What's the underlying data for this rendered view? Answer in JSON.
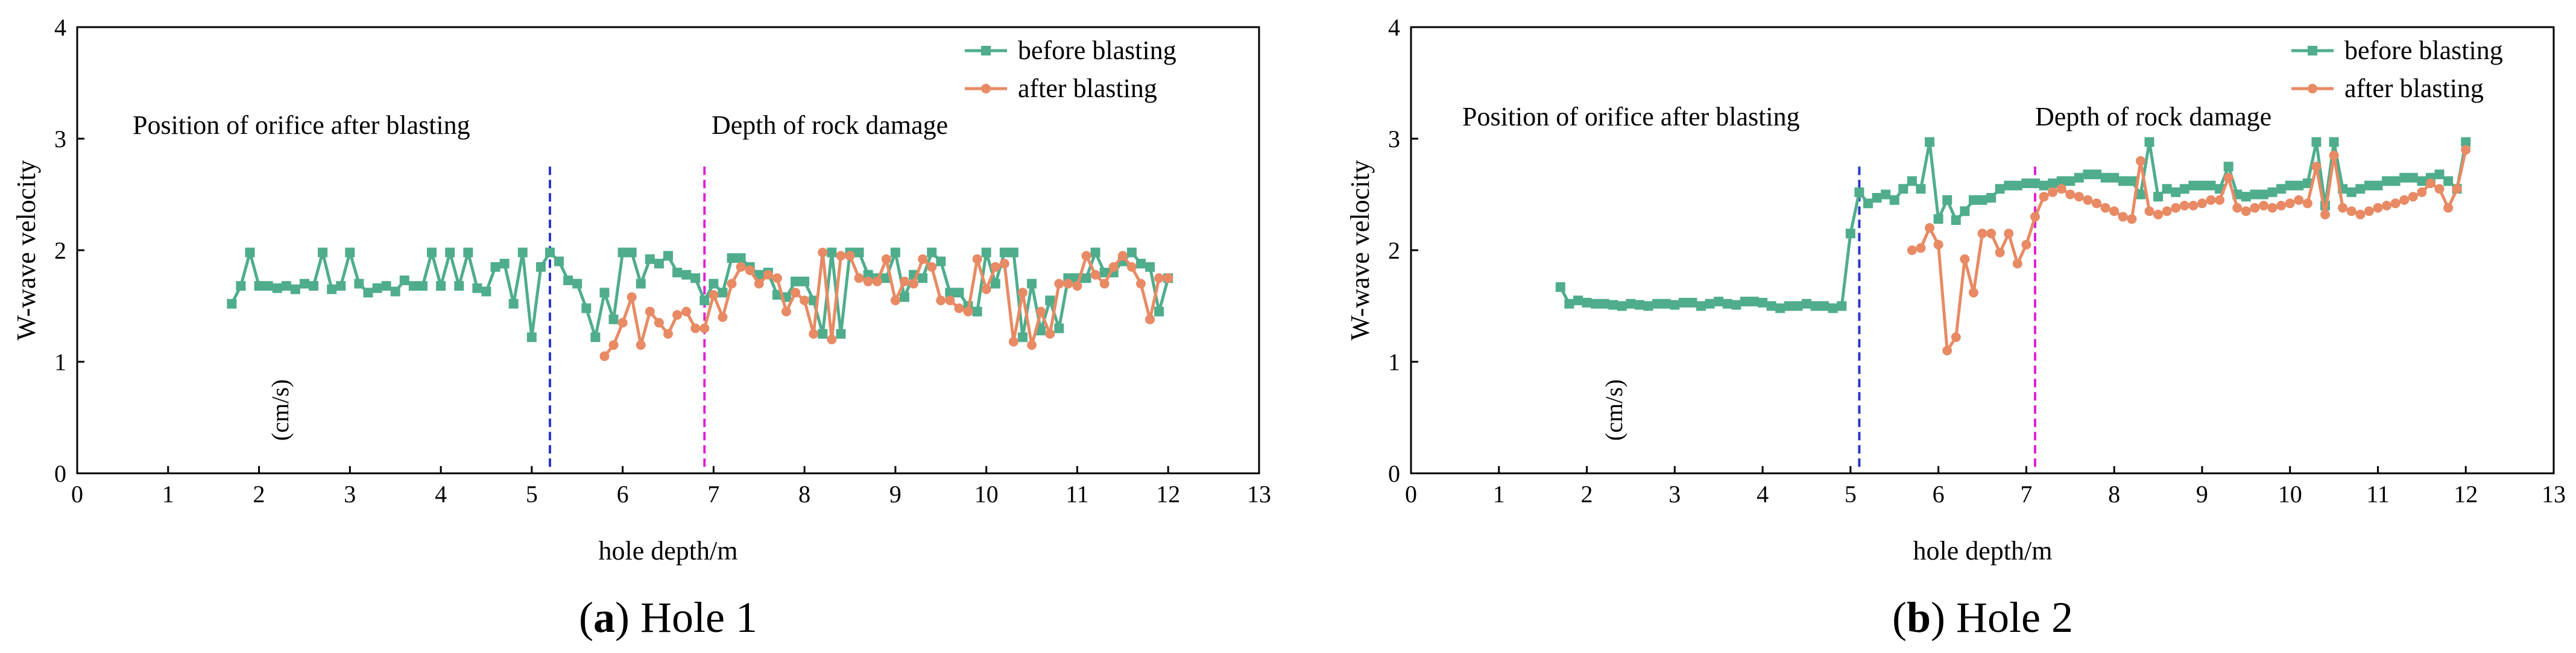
{
  "chart_data": [
    {
      "type": "line",
      "panel_letter": "a",
      "caption": "Hole 1",
      "xlabel": "hole depth/m",
      "ylabel": "W-wave velocity",
      "ylabel_unit": "(cm/s)",
      "xlim": [
        0,
        13
      ],
      "ylim": [
        0,
        4
      ],
      "xticks": [
        "0",
        "1",
        "2",
        "3",
        "4",
        "5",
        "6",
        "7",
        "8",
        "9",
        "10",
        "11",
        "12",
        "13"
      ],
      "yticks": [
        "0",
        "1",
        "2",
        "3",
        "4"
      ],
      "legend_position": "top-right",
      "annotations": [
        {
          "text": "Position of orifice after blasting",
          "x": 5.2,
          "color": "#2b36c9"
        },
        {
          "text": "Depth of rock damage",
          "x": 6.9,
          "color": "#e020d6"
        }
      ],
      "series": [
        {
          "name": "before blasting",
          "color": "#4fad8c",
          "marker": "square",
          "x": [
            1.7,
            1.8,
            1.9,
            2.0,
            2.1,
            2.2,
            2.3,
            2.4,
            2.5,
            2.6,
            2.7,
            2.8,
            2.9,
            3.0,
            3.1,
            3.2,
            3.3,
            3.4,
            3.5,
            3.6,
            3.7,
            3.8,
            3.9,
            4.0,
            4.1,
            4.2,
            4.3,
            4.4,
            4.5,
            4.6,
            4.7,
            4.8,
            4.9,
            5.0,
            5.1,
            5.2,
            5.3,
            5.4,
            5.5,
            5.6,
            5.7,
            5.8,
            5.9,
            6.0,
            6.1,
            6.2,
            6.3,
            6.4,
            6.5,
            6.6,
            6.7,
            6.8,
            6.9,
            7.0,
            7.1,
            7.2,
            7.3,
            7.4,
            7.5,
            7.6,
            7.7,
            7.8,
            7.9,
            8.0,
            8.1,
            8.2,
            8.3,
            8.4,
            8.5,
            8.6,
            8.7,
            8.8,
            8.9,
            9.0,
            9.1,
            9.2,
            9.3,
            9.4,
            9.5,
            9.6,
            9.7,
            9.8,
            9.9,
            10.0,
            10.1,
            10.2,
            10.3,
            10.4,
            10.5,
            10.6,
            10.7,
            10.8,
            10.9,
            11.0,
            11.1,
            11.2,
            11.3,
            11.4,
            11.5,
            11.6,
            11.7,
            11.8,
            11.9,
            12.0
          ],
          "y": [
            1.52,
            1.68,
            1.98,
            1.68,
            1.68,
            1.66,
            1.68,
            1.65,
            1.7,
            1.68,
            1.98,
            1.65,
            1.68,
            1.98,
            1.7,
            1.62,
            1.66,
            1.68,
            1.63,
            1.73,
            1.68,
            1.68,
            1.98,
            1.68,
            1.98,
            1.68,
            1.98,
            1.66,
            1.63,
            1.85,
            1.88,
            1.52,
            1.98,
            1.22,
            1.85,
            1.98,
            1.9,
            1.73,
            1.7,
            1.48,
            1.22,
            1.62,
            1.38,
            1.98,
            1.98,
            1.7,
            1.92,
            1.88,
            1.95,
            1.8,
            1.78,
            1.75,
            1.55,
            1.7,
            1.62,
            1.93,
            1.93,
            1.85,
            1.78,
            1.8,
            1.6,
            1.58,
            1.72,
            1.72,
            1.55,
            1.25,
            1.98,
            1.25,
            1.98,
            1.98,
            1.78,
            1.75,
            1.75,
            1.98,
            1.58,
            1.78,
            1.75,
            1.98,
            1.9,
            1.62,
            1.62,
            1.5,
            1.45,
            1.98,
            1.7,
            1.98,
            1.98,
            1.22,
            1.7,
            1.28,
            1.55,
            1.3,
            1.75,
            1.75,
            1.75,
            1.98,
            1.8,
            1.8,
            1.9,
            1.98,
            1.88,
            1.85,
            1.45,
            1.75
          ]
        },
        {
          "name": "after blasting",
          "color": "#e88a64",
          "marker": "circle",
          "x": [
            5.8,
            5.9,
            6.0,
            6.1,
            6.2,
            6.3,
            6.4,
            6.5,
            6.6,
            6.7,
            6.8,
            6.9,
            7.0,
            7.1,
            7.2,
            7.3,
            7.4,
            7.5,
            7.6,
            7.7,
            7.8,
            7.9,
            8.0,
            8.1,
            8.2,
            8.3,
            8.4,
            8.5,
            8.6,
            8.7,
            8.8,
            8.9,
            9.0,
            9.1,
            9.2,
            9.3,
            9.4,
            9.5,
            9.6,
            9.7,
            9.8,
            9.9,
            10.0,
            10.1,
            10.2,
            10.3,
            10.4,
            10.5,
            10.6,
            10.7,
            10.8,
            10.9,
            11.0,
            11.1,
            11.2,
            11.3,
            11.4,
            11.5,
            11.6,
            11.7,
            11.8,
            11.9,
            12.0
          ],
          "y": [
            1.05,
            1.15,
            1.35,
            1.58,
            1.15,
            1.45,
            1.35,
            1.25,
            1.42,
            1.45,
            1.3,
            1.3,
            1.6,
            1.4,
            1.7,
            1.85,
            1.82,
            1.7,
            1.78,
            1.75,
            1.45,
            1.62,
            1.55,
            1.25,
            1.98,
            1.2,
            1.95,
            1.95,
            1.75,
            1.72,
            1.72,
            1.92,
            1.55,
            1.72,
            1.7,
            1.92,
            1.85,
            1.55,
            1.55,
            1.48,
            1.45,
            1.92,
            1.65,
            1.85,
            1.88,
            1.18,
            1.62,
            1.15,
            1.45,
            1.25,
            1.7,
            1.7,
            1.68,
            1.95,
            1.78,
            1.7,
            1.85,
            1.95,
            1.85,
            1.7,
            1.38,
            1.75,
            1.75
          ]
        }
      ]
    },
    {
      "type": "line",
      "panel_letter": "b",
      "caption": "Hole 2",
      "xlabel": "hole depth/m",
      "ylabel": "W-wave velocity",
      "ylabel_unit": "(cm/s)",
      "xlim": [
        0,
        13
      ],
      "ylim": [
        0,
        4
      ],
      "xticks": [
        "0",
        "1",
        "2",
        "3",
        "4",
        "5",
        "6",
        "7",
        "8",
        "9",
        "10",
        "11",
        "12",
        "13"
      ],
      "yticks": [
        "0",
        "1",
        "2",
        "3",
        "4"
      ],
      "legend_position": "top-right",
      "annotations": [
        {
          "text": "Position of orifice after blasting",
          "x": 5.1,
          "color": "#2b36c9"
        },
        {
          "text": "Depth of rock damage",
          "x": 7.1,
          "color": "#e020d6"
        }
      ],
      "series": [
        {
          "name": "before blasting",
          "color": "#4fad8c",
          "marker": "square",
          "x": [
            1.7,
            1.8,
            1.9,
            2.0,
            2.1,
            2.2,
            2.3,
            2.4,
            2.5,
            2.6,
            2.7,
            2.8,
            2.9,
            3.0,
            3.1,
            3.2,
            3.3,
            3.4,
            3.5,
            3.6,
            3.7,
            3.8,
            3.9,
            4.0,
            4.1,
            4.2,
            4.3,
            4.4,
            4.5,
            4.6,
            4.7,
            4.8,
            4.9,
            5.0,
            5.1,
            5.2,
            5.3,
            5.4,
            5.5,
            5.6,
            5.7,
            5.8,
            5.9,
            6.0,
            6.1,
            6.2,
            6.3,
            6.4,
            6.5,
            6.6,
            6.7,
            6.8,
            6.9,
            7.0,
            7.1,
            7.2,
            7.3,
            7.4,
            7.5,
            7.6,
            7.7,
            7.8,
            7.9,
            8.0,
            8.1,
            8.2,
            8.3,
            8.4,
            8.5,
            8.6,
            8.7,
            8.8,
            8.9,
            9.0,
            9.1,
            9.2,
            9.3,
            9.4,
            9.5,
            9.6,
            9.7,
            9.8,
            9.9,
            10.0,
            10.1,
            10.2,
            10.3,
            10.4,
            10.5,
            10.6,
            10.7,
            10.8,
            10.9,
            11.0,
            11.1,
            11.2,
            11.3,
            11.4,
            11.5,
            11.6,
            11.7,
            11.8,
            11.9,
            12.0
          ],
          "y": [
            1.67,
            1.52,
            1.55,
            1.53,
            1.52,
            1.52,
            1.51,
            1.5,
            1.52,
            1.51,
            1.5,
            1.52,
            1.52,
            1.51,
            1.53,
            1.53,
            1.5,
            1.52,
            1.54,
            1.52,
            1.51,
            1.54,
            1.54,
            1.53,
            1.5,
            1.48,
            1.5,
            1.5,
            1.52,
            1.5,
            1.5,
            1.48,
            1.5,
            2.15,
            2.52,
            2.42,
            2.47,
            2.5,
            2.45,
            2.55,
            2.62,
            2.55,
            2.97,
            2.28,
            2.45,
            2.27,
            2.35,
            2.45,
            2.45,
            2.47,
            2.55,
            2.58,
            2.58,
            2.6,
            2.6,
            2.58,
            2.6,
            2.62,
            2.62,
            2.65,
            2.68,
            2.68,
            2.65,
            2.65,
            2.62,
            2.62,
            2.5,
            2.97,
            2.48,
            2.55,
            2.52,
            2.55,
            2.58,
            2.58,
            2.58,
            2.55,
            2.75,
            2.5,
            2.48,
            2.5,
            2.5,
            2.52,
            2.55,
            2.58,
            2.58,
            2.6,
            2.97,
            2.4,
            2.97,
            2.55,
            2.52,
            2.55,
            2.58,
            2.58,
            2.62,
            2.62,
            2.65,
            2.65,
            2.62,
            2.65,
            2.68,
            2.62,
            2.55,
            2.97
          ]
        },
        {
          "name": "after blasting",
          "color": "#e88a64",
          "marker": "circle",
          "x": [
            5.7,
            5.8,
            5.9,
            6.0,
            6.1,
            6.2,
            6.3,
            6.4,
            6.5,
            6.6,
            6.7,
            6.8,
            6.9,
            7.0,
            7.1,
            7.2,
            7.3,
            7.4,
            7.5,
            7.6,
            7.7,
            7.8,
            7.9,
            8.0,
            8.1,
            8.2,
            8.3,
            8.4,
            8.5,
            8.6,
            8.7,
            8.8,
            8.9,
            9.0,
            9.1,
            9.2,
            9.3,
            9.4,
            9.5,
            9.6,
            9.7,
            9.8,
            9.9,
            10.0,
            10.1,
            10.2,
            10.3,
            10.4,
            10.5,
            10.6,
            10.7,
            10.8,
            10.9,
            11.0,
            11.1,
            11.2,
            11.3,
            11.4,
            11.5,
            11.6,
            11.7,
            11.8,
            11.9,
            12.0
          ],
          "y": [
            2.0,
            2.02,
            2.2,
            2.05,
            1.1,
            1.22,
            1.92,
            1.62,
            2.15,
            2.15,
            1.98,
            2.15,
            1.88,
            2.05,
            2.3,
            2.48,
            2.52,
            2.55,
            2.5,
            2.48,
            2.45,
            2.42,
            2.38,
            2.35,
            2.3,
            2.28,
            2.8,
            2.35,
            2.32,
            2.35,
            2.38,
            2.4,
            2.4,
            2.42,
            2.45,
            2.45,
            2.65,
            2.38,
            2.35,
            2.38,
            2.4,
            2.38,
            2.4,
            2.42,
            2.45,
            2.42,
            2.75,
            2.32,
            2.85,
            2.38,
            2.35,
            2.32,
            2.35,
            2.38,
            2.4,
            2.42,
            2.45,
            2.48,
            2.52,
            2.6,
            2.55,
            2.38,
            2.55,
            2.9
          ]
        }
      ]
    }
  ]
}
